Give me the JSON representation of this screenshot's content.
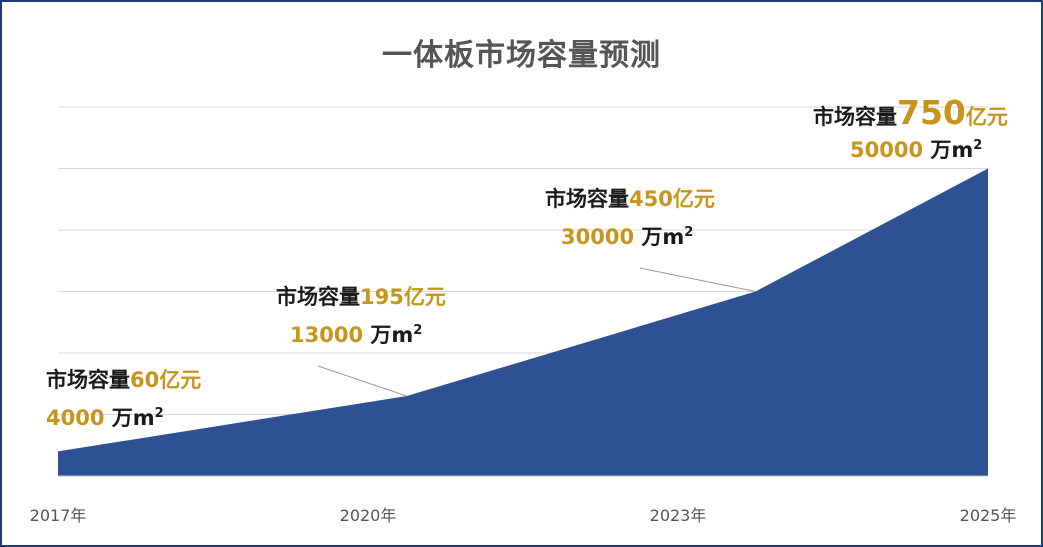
{
  "chart_data": {
    "type": "area",
    "title": "一体板市场容量预测",
    "categories": [
      "2017年",
      "2020年",
      "2023年",
      "2025年"
    ],
    "series": [
      {
        "values": [
          4000,
          13000,
          30000,
          50000
        ]
      }
    ],
    "ylim": [
      0,
      60000
    ],
    "grid": true,
    "color": "#2e5193",
    "annotations": [
      {
        "label": "市场容量",
        "value": "60",
        "unit": "亿元",
        "area": "4000",
        "area_unit": "万m",
        "sup": "2"
      },
      {
        "label": "市场容量",
        "value": "195",
        "unit": "亿元",
        "area": "13000",
        "area_unit": "万m",
        "sup": "2"
      },
      {
        "label": "市场容量",
        "value": "450",
        "unit": "亿元",
        "area": "30000",
        "area_unit": "万m",
        "sup": "2"
      },
      {
        "label": "市场容量",
        "value": "750",
        "unit": "亿元",
        "area": "50000",
        "area_unit": "万m",
        "sup": "2"
      }
    ]
  }
}
